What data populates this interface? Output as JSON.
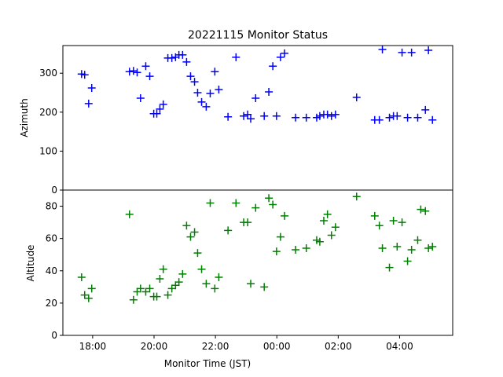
{
  "chart_data": [
    {
      "type": "scatter",
      "title": "20221115 Monitor Status",
      "ylabel": "Azimuth",
      "color": "#0000ff",
      "xlim": [
        17.03,
        29.73
      ],
      "ylim": [
        0,
        371
      ],
      "yticks": [
        0,
        100,
        200,
        300
      ],
      "x": [
        17.64,
        17.74,
        17.87,
        17.97,
        19.2,
        19.33,
        19.45,
        19.56,
        19.73,
        19.86,
        19.99,
        20.09,
        20.19,
        20.3,
        20.45,
        20.58,
        20.7,
        20.81,
        20.93,
        21.06,
        21.19,
        21.32,
        21.42,
        21.55,
        21.7,
        21.83,
        21.98,
        22.11,
        22.41,
        22.67,
        22.92,
        23.05,
        23.15,
        23.31,
        23.59,
        23.74,
        23.87,
        23.99,
        24.12,
        24.25,
        24.61,
        24.96,
        25.3,
        25.4,
        25.53,
        25.65,
        25.78,
        25.91,
        26.6,
        27.19,
        27.34,
        27.44,
        27.67,
        27.8,
        27.92,
        28.08,
        28.26,
        28.39,
        28.59,
        28.84,
        28.94,
        29.07
      ],
      "y": [
        298,
        296,
        222,
        262,
        304,
        306,
        302,
        236,
        318,
        292,
        196,
        196,
        208,
        220,
        339,
        339,
        341,
        347,
        347,
        329,
        292,
        278,
        250,
        226,
        214,
        248,
        304,
        258,
        188,
        341,
        190,
        194,
        183,
        236,
        190,
        252,
        318,
        190,
        341,
        351,
        186,
        186,
        186,
        190,
        194,
        194,
        190,
        194,
        238,
        180,
        180,
        361,
        186,
        190,
        190,
        353,
        186,
        353,
        186,
        206,
        359,
        180
      ]
    },
    {
      "type": "scatter",
      "ylabel": "Altitude",
      "xlabel": "Monitor Time (JST)",
      "color": "#008000",
      "xlim": [
        17.03,
        29.73
      ],
      "ylim": [
        0,
        90
      ],
      "yticks": [
        0,
        20,
        40,
        60,
        80
      ],
      "xticks": [
        {
          "value": 18,
          "label": "18:00"
        },
        {
          "value": 20,
          "label": "20:00"
        },
        {
          "value": 22,
          "label": "22:00"
        },
        {
          "value": 24,
          "label": "00:00"
        },
        {
          "value": 26,
          "label": "02:00"
        },
        {
          "value": 28,
          "label": "04:00"
        }
      ],
      "x": [
        17.64,
        17.74,
        17.87,
        17.97,
        19.2,
        19.33,
        19.45,
        19.56,
        19.73,
        19.86,
        19.99,
        20.09,
        20.19,
        20.3,
        20.45,
        20.58,
        20.7,
        20.81,
        20.93,
        21.06,
        21.19,
        21.32,
        21.42,
        21.55,
        21.7,
        21.83,
        21.98,
        22.11,
        22.41,
        22.67,
        22.92,
        23.05,
        23.15,
        23.31,
        23.59,
        23.74,
        23.87,
        23.99,
        24.12,
        24.25,
        24.61,
        24.96,
        25.3,
        25.4,
        25.53,
        25.65,
        25.78,
        25.91,
        26.6,
        27.19,
        27.34,
        27.44,
        27.67,
        27.8,
        27.92,
        28.08,
        28.26,
        28.39,
        28.59,
        28.69,
        28.84,
        28.94,
        29.07
      ],
      "y": [
        36,
        25,
        23,
        29,
        75,
        22,
        27,
        29,
        27,
        29,
        24,
        24,
        35,
        41,
        25,
        29,
        31,
        33,
        38,
        68,
        61,
        64,
        51,
        41,
        32,
        82,
        29,
        36,
        65,
        82,
        70,
        70,
        32,
        79,
        30,
        85,
        81,
        52,
        61,
        74,
        53,
        54,
        59,
        58,
        71,
        75,
        62,
        67,
        86,
        74,
        68,
        54,
        42,
        71,
        55,
        70,
        46,
        53,
        59,
        78,
        77,
        54,
        55
      ]
    }
  ]
}
